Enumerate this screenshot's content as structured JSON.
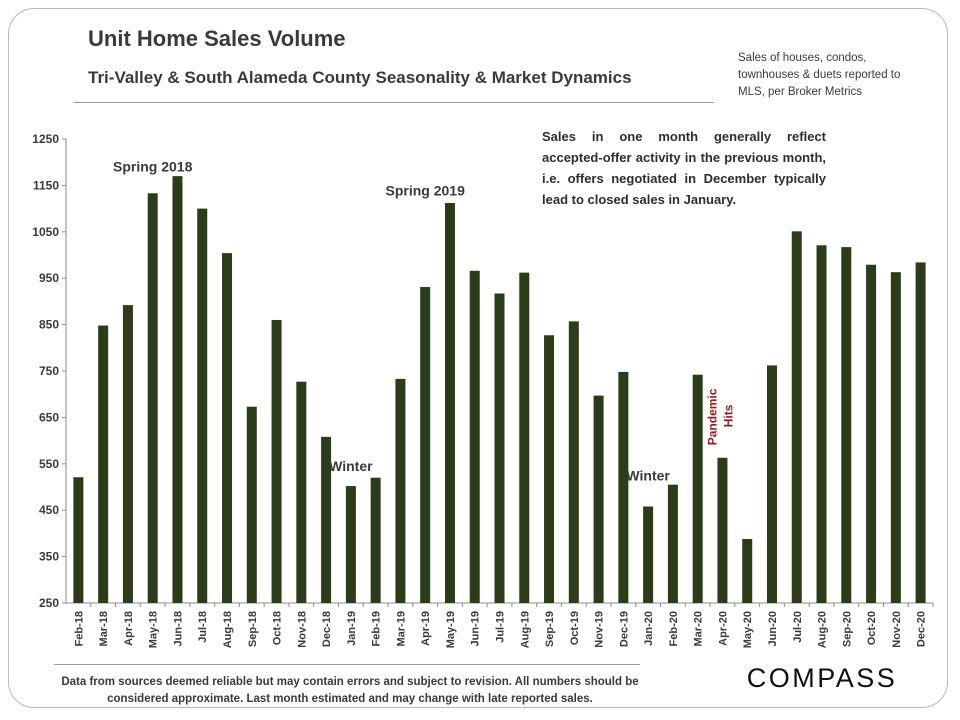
{
  "header": {
    "title": "Unit Home Sales Volume",
    "subtitle": "Tri-Valley  & South Alameda County Seasonality & Market Dynamics",
    "source_note": "Sales of houses, condos, townhouses & duets reported to MLS, per Broker Metrics"
  },
  "explanation": "Sales in one month generally reflect accepted-offer activity in the previous month, i.e. offers negotiated in December typically lead to closed sales in January.",
  "footer": {
    "disclaimer": "Data from sources deemed reliable but may contain errors and subject to revision.  All numbers should be considered approximate.  Last month estimated and may change with late reported sales.",
    "logo_text": "COMPASS"
  },
  "colors": {
    "bar": "#2a3d18",
    "text": "#3a3a3a",
    "pandemic": "#a01818",
    "axis": "#8c8c8c"
  },
  "chart_data": {
    "type": "bar",
    "title": "Unit Home Sales Volume",
    "xlabel": "",
    "ylabel": "",
    "ylim": [
      250,
      1250
    ],
    "yticks": [
      250,
      350,
      450,
      550,
      650,
      750,
      850,
      950,
      1050,
      1150,
      1250
    ],
    "grid": false,
    "legend": "none",
    "categories": [
      "Feb-18",
      "Mar-18",
      "Apr-18",
      "May-18",
      "Jun-18",
      "Jul-18",
      "Aug-18",
      "Sep-18",
      "Oct-18",
      "Nov-18",
      "Dec-18",
      "Jan-19",
      "Feb-19",
      "Mar-19",
      "Apr-19",
      "May-19",
      "Jun-19",
      "Jul-19",
      "Aug-19",
      "Sep-19",
      "Oct-19",
      "Nov-19",
      "Dec-19",
      "Jan-20",
      "Feb-20",
      "Mar-20",
      "Apr-20",
      "May-20",
      "Jun-20",
      "Jul-20",
      "Aug-20",
      "Sep-20",
      "Oct-20",
      "Nov-20",
      "Dec-20"
    ],
    "values": [
      521,
      848,
      892,
      1133,
      1170,
      1100,
      1004,
      673,
      860,
      727,
      608,
      502,
      520,
      733,
      931,
      1112,
      966,
      917,
      962,
      827,
      857,
      697,
      748,
      458,
      505,
      742,
      563,
      388,
      762,
      1051,
      1021,
      1017,
      979,
      963,
      984
    ],
    "annotations": [
      {
        "text": "Spring 2018",
        "category": "May-18",
        "value": 1180
      },
      {
        "text": "Winter",
        "category": "Jan-19",
        "value": 535
      },
      {
        "text": "Spring 2019",
        "category": "Apr-19",
        "value": 1128
      },
      {
        "text": "Winter",
        "category": "Jan-20",
        "value": 514
      },
      {
        "text": "Pandemic",
        "category": "Apr-20",
        "value": 590,
        "color": "#a01818",
        "rotated": true
      },
      {
        "text": "Hits",
        "category": "Apr-20",
        "value": 590,
        "color": "#a01818",
        "rotated": true
      }
    ]
  }
}
